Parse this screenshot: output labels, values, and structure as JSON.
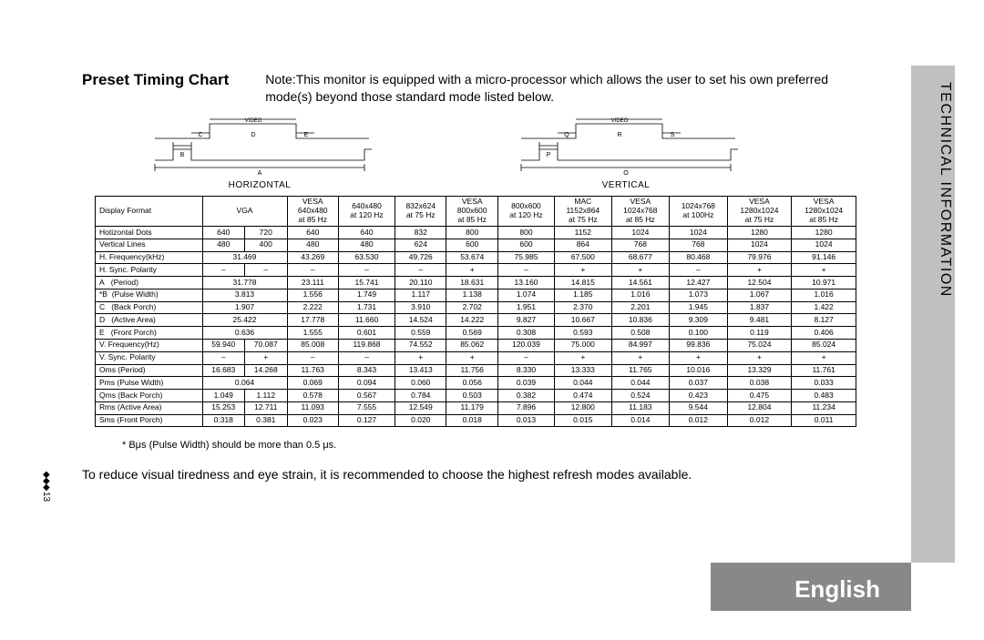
{
  "page": {
    "title": "Preset Timing Chart",
    "note": "Note:This monitor is equipped with a micro-processor which allows the user to set his own preferred mode(s) beyond those standard mode listed below.",
    "footnote1": "* Bμs (Pulse Width) should be more than 0.5 μs.",
    "footnote2": "To reduce visual tiredness and eye strain, it is recommended to choose the highest refresh modes available.",
    "page_number": "13",
    "side_label": "TECHNICAL INFORMATION",
    "language_label": "English"
  },
  "diagrams": {
    "h_label": "HORIZONTAL",
    "v_label": "VERTICAL",
    "video_label": "VIDEO",
    "h_letters": [
      "A",
      "B",
      "C",
      "D",
      "E"
    ],
    "v_letters": [
      "O",
      "P",
      "Q",
      "R",
      "S"
    ]
  },
  "table": {
    "header_row1": "Display Format",
    "cols": [
      {
        "l1": "VGA",
        "l2": "",
        "span": 2
      },
      {
        "l1": "VESA",
        "l2": "640x480",
        "l3": "at 85 Hz",
        "span": 1
      },
      {
        "l1": "640x480",
        "l2": "at 120 Hz",
        "span": 1
      },
      {
        "l1": "832x624",
        "l2": "at 75 Hz",
        "span": 1
      },
      {
        "l1": "VESA",
        "l2": "800x600",
        "l3": "at 85 Hz",
        "span": 1
      },
      {
        "l1": "800x600",
        "l2": "at 120 Hz",
        "span": 1
      },
      {
        "l1": "MAC",
        "l2": "1152x864",
        "l3": "at 75 Hz",
        "span": 1
      },
      {
        "l1": "VESA",
        "l2": "1024x768",
        "l3": "at 85 Hz",
        "span": 1
      },
      {
        "l1": "1024x768",
        "l2": "at 100Hz",
        "span": 1
      },
      {
        "l1": "VESA",
        "l2": "1280x1024",
        "l3": "at 75 Hz",
        "span": 1
      },
      {
        "l1": "VESA",
        "l2": "1280x1024",
        "l3": "at 85 Hz",
        "span": 1
      }
    ],
    "rows": [
      {
        "label": "Hotizontal Dots",
        "cells": [
          "640",
          "720",
          "640",
          "640",
          "832",
          "800",
          "800",
          "1152",
          "1024",
          "1024",
          "1280",
          "1280"
        ]
      },
      {
        "label": "Vertical Lines",
        "cells": [
          "480",
          "400",
          "480",
          "480",
          "624",
          "600",
          "600",
          "864",
          "768",
          "768",
          "1024",
          "1024"
        ]
      },
      {
        "label": "H. Frequency(kHz)",
        "cells": [
          {
            "text": "31.469",
            "span": 2
          },
          "43.269",
          "63.530",
          "49.726",
          "53.674",
          "75.985",
          "67.500",
          "68.677",
          "80.468",
          "79.976",
          "91.146"
        ]
      },
      {
        "label": "H. Sync. Polarity",
        "cells": [
          "–",
          "–",
          "–",
          "–",
          "–",
          "+",
          "–",
          "+",
          "+",
          "–",
          "+",
          "+"
        ]
      },
      {
        "label": "A   (Period)",
        "cells": [
          {
            "text": "31.778",
            "span": 2
          },
          "23.111",
          "15.741",
          "20.110",
          "18.631",
          "13.160",
          "14.815",
          "14.561",
          "12.427",
          "12.504",
          "10.971"
        ]
      },
      {
        "label": "*B  (Pulse Width)",
        "cells": [
          {
            "text": "3.813",
            "span": 2
          },
          "1.556",
          "1.749",
          "1.117",
          "1.138",
          "1.074",
          "1.185",
          "1.016",
          "1.073",
          "1.067",
          "1.016"
        ]
      },
      {
        "label": "C   (Back Porch)",
        "cells": [
          {
            "text": "1.907",
            "span": 2
          },
          "2.222",
          "1.731",
          "3.910",
          "2.702",
          "1.951",
          "2.370",
          "2.201",
          "1.945",
          "1.837",
          "1.422"
        ]
      },
      {
        "label": "D   (Active Area)",
        "cells": [
          {
            "text": "25.422",
            "span": 2
          },
          "17.778",
          "11.660",
          "14.524",
          "14.222",
          "9.827",
          "10.667",
          "10.836",
          "9.309",
          "9.481",
          "8.127"
        ]
      },
      {
        "label": "E   (Front Porch)",
        "cells": [
          {
            "text": "0.636",
            "span": 2
          },
          "1.555",
          "0.601",
          "0.559",
          "0.569",
          "0.308",
          "0.593",
          "0.508",
          "0.100",
          "0.119",
          "0.406"
        ]
      },
      {
        "label": "V. Frequency(Hz)",
        "cells": [
          "59.940",
          "70.087",
          "85.008",
          "119.868",
          "74.552",
          "85.062",
          "120.039",
          "75.000",
          "84.997",
          "99.836",
          "75.024",
          "85.024"
        ]
      },
      {
        "label": "V. Sync. Polarity",
        "cells": [
          "–",
          "+",
          "–",
          "–",
          "+",
          "+",
          "–",
          "+",
          "+",
          "+",
          "+",
          "+"
        ]
      },
      {
        "label": "Oms (Period)",
        "cells": [
          "16.683",
          "14.268",
          "11.763",
          "8.343",
          "13.413",
          "11.756",
          "8.330",
          "13.333",
          "11.765",
          "10.016",
          "13.329",
          "11.761"
        ]
      },
      {
        "label": "Pms (Pulse Width)",
        "cells": [
          {
            "text": "0.064",
            "span": 2
          },
          "0.069",
          "0.094",
          "0.060",
          "0.056",
          "0.039",
          "0.044",
          "0.044",
          "0.037",
          "0.038",
          "0.033"
        ]
      },
      {
        "label": "Qms (Back Porch)",
        "cells": [
          "1.049",
          "1.112",
          "0.578",
          "0.567",
          "0.784",
          "0.503",
          "0.382",
          "0.474",
          "0.524",
          "0.423",
          "0.475",
          "0.483"
        ]
      },
      {
        "label": "Rms (Active Area)",
        "cells": [
          "15.253",
          "12.711",
          "11.093",
          "7.555",
          "12.549",
          "11.179",
          "7.896",
          "12.800",
          "11.183",
          "9.544",
          "12.804",
          "11.234"
        ]
      },
      {
        "label": "Sms (Front Porch)",
        "cells": [
          "0.318",
          "0.381",
          "0.023",
          "0.127",
          "0.020",
          "0.018",
          "0.013",
          "0.015",
          "0.014",
          "0.012",
          "0.012",
          "0.011"
        ]
      }
    ]
  }
}
